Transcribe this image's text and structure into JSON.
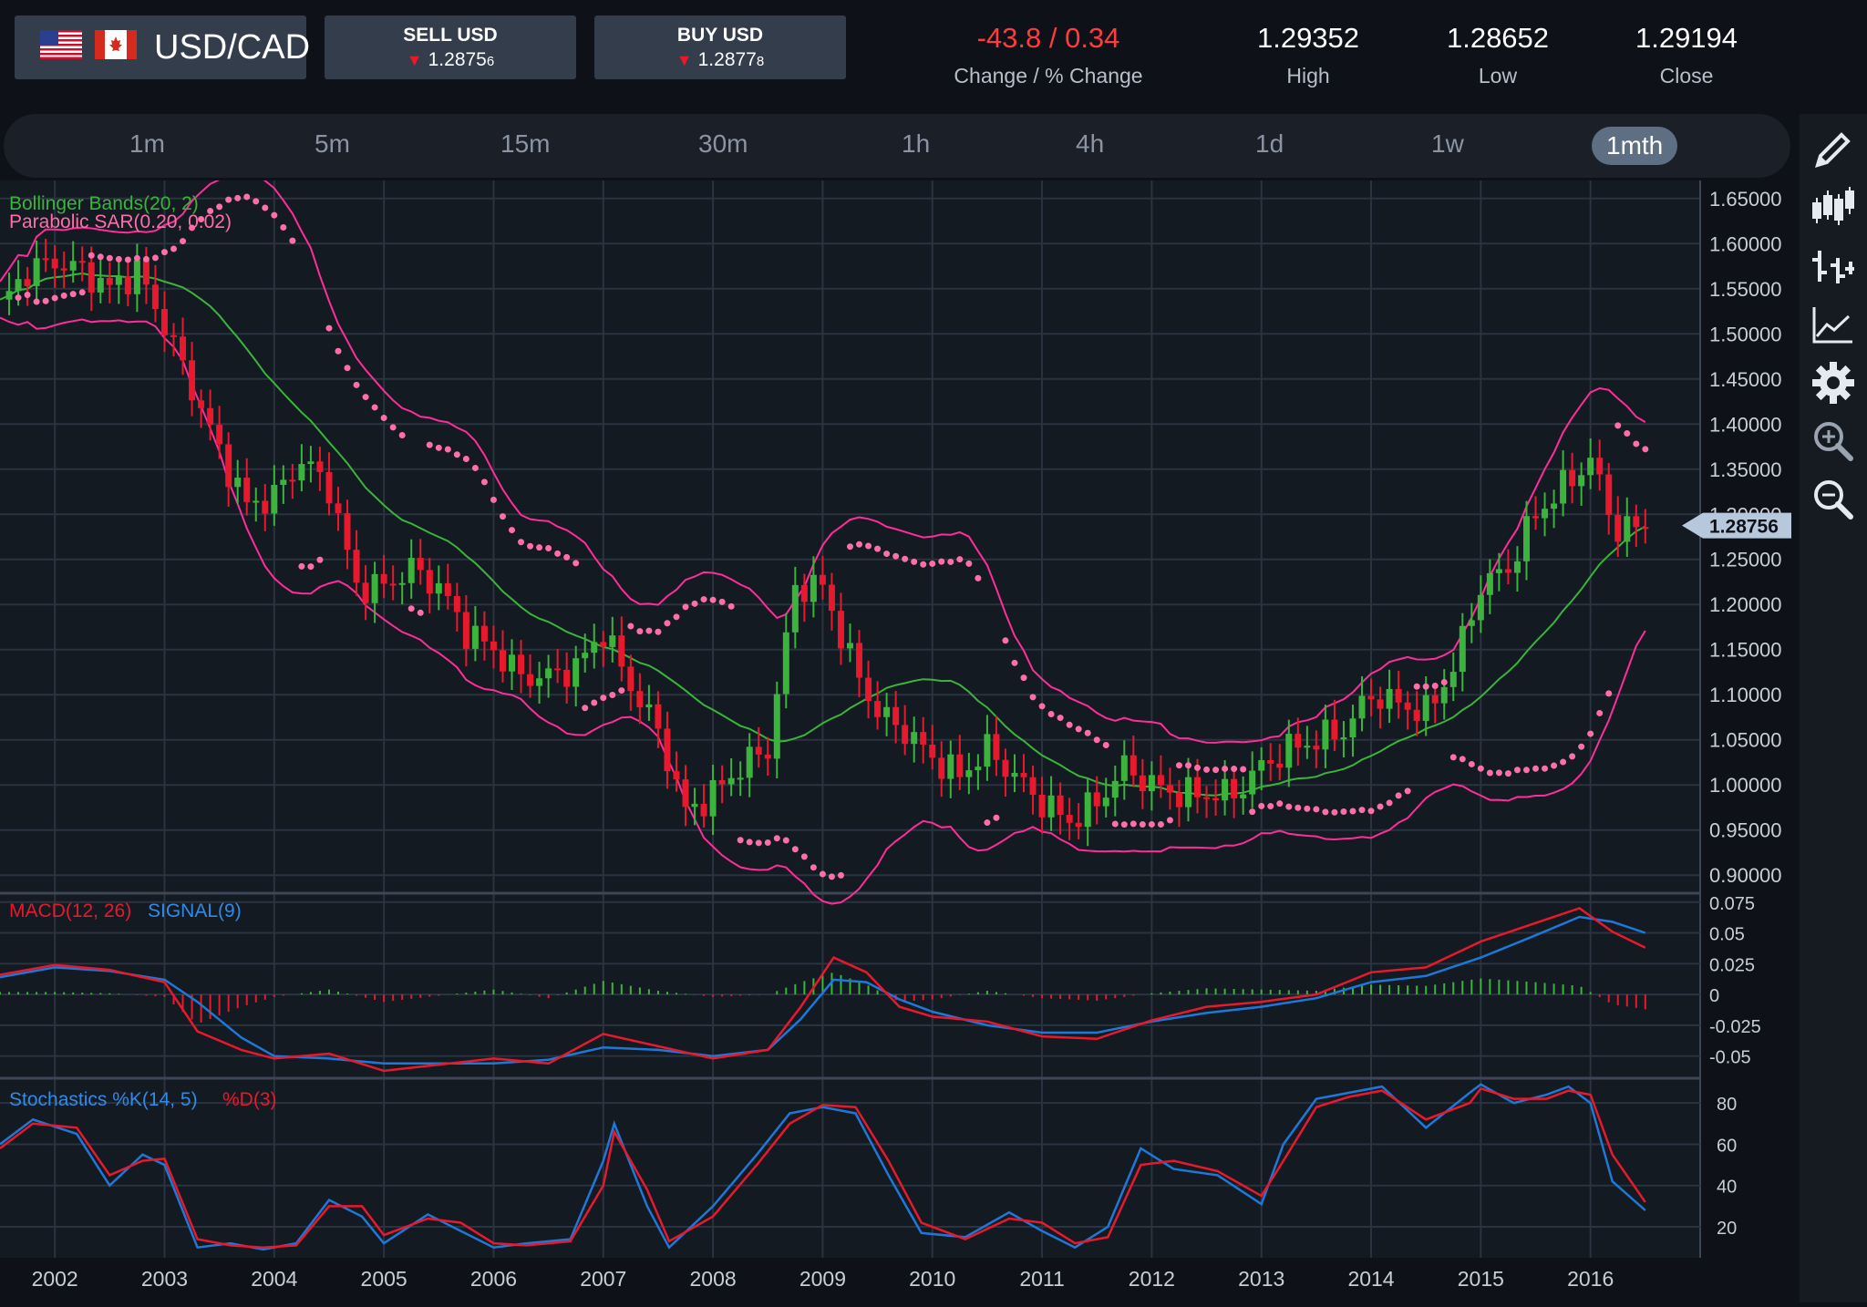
{
  "header": {
    "pair": "USD/CAD",
    "sell": {
      "label": "SELL USD",
      "price": "1.2875",
      "pip": "6"
    },
    "buy": {
      "label": "BUY USD",
      "price": "1.2877",
      "pip": "8"
    },
    "change": {
      "value": "-43.8 / 0.34",
      "label": "Change / % Change"
    },
    "high": {
      "value": "1.29352",
      "label": "High"
    },
    "low": {
      "value": "1.28652",
      "label": "Low"
    },
    "close": {
      "value": "1.29194",
      "label": "Close"
    }
  },
  "timeframes": [
    "1m",
    "5m",
    "15m",
    "30m",
    "1h",
    "4h",
    "1d",
    "1w",
    "1mth"
  ],
  "active_timeframe": "1mth",
  "tools": [
    "pencil-icon",
    "candlestick-icon",
    "ohlc-bars-icon",
    "line-chart-icon",
    "gear-icon",
    "zoom-in-icon",
    "zoom-out-icon"
  ],
  "colors": {
    "up": "#3cb33c",
    "down": "#e8192c",
    "bollinger": "#ff2d9a",
    "sar": "#ff6ea8",
    "macd": "#e8192c",
    "signal": "#1e78d8",
    "background": "#0e1218"
  },
  "chart_data": [
    {
      "type": "candlestick",
      "title": "",
      "indicators": [
        "Bollinger Bands(20, 2)",
        "Parabolic SAR(0.20, 0.02)"
      ],
      "x_tick_labels": [
        "2002",
        "2003",
        "2004",
        "2005",
        "2006",
        "2007",
        "2008",
        "2009",
        "2010",
        "2011",
        "2012",
        "2013",
        "2014",
        "2015",
        "2016"
      ],
      "y_tick_labels": [
        "1.65000",
        "1.60000",
        "1.55000",
        "1.50000",
        "1.45000",
        "1.40000",
        "1.35000",
        "1.30000",
        "1.25000",
        "1.20000",
        "1.15000",
        "1.10000",
        "1.05000",
        "1.00000",
        "0.95000",
        "0.90000"
      ],
      "ylim": [
        0.88,
        1.67
      ],
      "xlim": [
        2001.5,
        2017.0
      ],
      "current_price_label": "1.28756",
      "current_price": 1.28756,
      "close_series": [
        [
          2001.5,
          1.53
        ],
        [
          2001.75,
          1.57
        ],
        [
          2002.0,
          1.58
        ],
        [
          2002.25,
          1.57
        ],
        [
          2002.5,
          1.55
        ],
        [
          2002.75,
          1.57
        ],
        [
          2003.0,
          1.51
        ],
        [
          2003.25,
          1.44
        ],
        [
          2003.5,
          1.37
        ],
        [
          2003.75,
          1.31
        ],
        [
          2004.0,
          1.32
        ],
        [
          2004.25,
          1.36
        ],
        [
          2004.5,
          1.33
        ],
        [
          2004.75,
          1.22
        ],
        [
          2005.0,
          1.22
        ],
        [
          2005.25,
          1.24
        ],
        [
          2005.5,
          1.22
        ],
        [
          2005.75,
          1.17
        ],
        [
          2006.0,
          1.15
        ],
        [
          2006.25,
          1.12
        ],
        [
          2006.5,
          1.12
        ],
        [
          2006.75,
          1.13
        ],
        [
          2007.0,
          1.17
        ],
        [
          2007.25,
          1.11
        ],
        [
          2007.5,
          1.06
        ],
        [
          2007.75,
          0.97
        ],
        [
          2008.0,
          0.99
        ],
        [
          2008.25,
          1.02
        ],
        [
          2008.5,
          1.04
        ],
        [
          2008.75,
          1.22
        ],
        [
          2009.0,
          1.22
        ],
        [
          2009.25,
          1.14
        ],
        [
          2009.5,
          1.08
        ],
        [
          2009.75,
          1.06
        ],
        [
          2010.0,
          1.03
        ],
        [
          2010.25,
          1.01
        ],
        [
          2010.5,
          1.04
        ],
        [
          2010.75,
          1.01
        ],
        [
          2011.0,
          0.98
        ],
        [
          2011.25,
          0.96
        ],
        [
          2011.5,
          0.98
        ],
        [
          2011.75,
          1.02
        ],
        [
          2012.0,
          1.0
        ],
        [
          2012.25,
          0.99
        ],
        [
          2012.5,
          0.99
        ],
        [
          2012.75,
          0.99
        ],
        [
          2013.0,
          1.02
        ],
        [
          2013.25,
          1.04
        ],
        [
          2013.5,
          1.05
        ],
        [
          2013.75,
          1.06
        ],
        [
          2014.0,
          1.1
        ],
        [
          2014.25,
          1.09
        ],
        [
          2014.5,
          1.08
        ],
        [
          2014.75,
          1.13
        ],
        [
          2015.0,
          1.22
        ],
        [
          2015.25,
          1.24
        ],
        [
          2015.5,
          1.3
        ],
        [
          2015.75,
          1.33
        ],
        [
          2016.0,
          1.36
        ],
        [
          2016.25,
          1.28
        ],
        [
          2016.5,
          1.29
        ]
      ]
    },
    {
      "type": "line",
      "title": "",
      "indicators": [
        "MACD(12, 26)",
        "SIGNAL(9)"
      ],
      "y_tick_labels": [
        "0.075",
        "0.05",
        "0.025",
        "0",
        "-0.025",
        "-0.05"
      ],
      "ylim": [
        -0.068,
        0.08
      ],
      "series": [
        {
          "name": "MACD(12, 26)",
          "points": [
            [
              2001.5,
              0.016
            ],
            [
              2002.0,
              0.024
            ],
            [
              2002.5,
              0.02
            ],
            [
              2003.0,
              0.01
            ],
            [
              2003.3,
              -0.03
            ],
            [
              2003.7,
              -0.045
            ],
            [
              2004.0,
              -0.052
            ],
            [
              2004.5,
              -0.048
            ],
            [
              2005.0,
              -0.062
            ],
            [
              2005.5,
              -0.057
            ],
            [
              2006.0,
              -0.052
            ],
            [
              2006.5,
              -0.056
            ],
            [
              2007.0,
              -0.032
            ],
            [
              2007.5,
              -0.042
            ],
            [
              2008.0,
              -0.052
            ],
            [
              2008.5,
              -0.045
            ],
            [
              2008.8,
              -0.01
            ],
            [
              2009.1,
              0.03
            ],
            [
              2009.4,
              0.018
            ],
            [
              2009.7,
              -0.01
            ],
            [
              2010.0,
              -0.018
            ],
            [
              2010.5,
              -0.022
            ],
            [
              2011.0,
              -0.034
            ],
            [
              2011.5,
              -0.036
            ],
            [
              2012.0,
              -0.021
            ],
            [
              2012.5,
              -0.01
            ],
            [
              2013.0,
              -0.006
            ],
            [
              2013.5,
              0.0
            ],
            [
              2014.0,
              0.018
            ],
            [
              2014.5,
              0.022
            ],
            [
              2015.0,
              0.043
            ],
            [
              2015.5,
              0.058
            ],
            [
              2015.9,
              0.07
            ],
            [
              2016.2,
              0.051
            ],
            [
              2016.5,
              0.038
            ]
          ]
        },
        {
          "name": "SIGNAL(9)",
          "points": [
            [
              2001.5,
              0.014
            ],
            [
              2002.0,
              0.022
            ],
            [
              2002.5,
              0.019
            ],
            [
              2003.0,
              0.012
            ],
            [
              2003.3,
              -0.006
            ],
            [
              2003.7,
              -0.035
            ],
            [
              2004.0,
              -0.05
            ],
            [
              2004.5,
              -0.052
            ],
            [
              2005.0,
              -0.056
            ],
            [
              2005.5,
              -0.056
            ],
            [
              2006.0,
              -0.056
            ],
            [
              2006.5,
              -0.053
            ],
            [
              2007.0,
              -0.043
            ],
            [
              2007.5,
              -0.045
            ],
            [
              2008.0,
              -0.05
            ],
            [
              2008.5,
              -0.045
            ],
            [
              2008.8,
              -0.02
            ],
            [
              2009.1,
              0.012
            ],
            [
              2009.4,
              0.01
            ],
            [
              2009.7,
              -0.004
            ],
            [
              2010.0,
              -0.014
            ],
            [
              2010.5,
              -0.025
            ],
            [
              2011.0,
              -0.031
            ],
            [
              2011.5,
              -0.031
            ],
            [
              2012.0,
              -0.022
            ],
            [
              2012.5,
              -0.015
            ],
            [
              2013.0,
              -0.01
            ],
            [
              2013.5,
              -0.003
            ],
            [
              2014.0,
              0.01
            ],
            [
              2014.5,
              0.015
            ],
            [
              2015.0,
              0.03
            ],
            [
              2015.5,
              0.048
            ],
            [
              2015.9,
              0.063
            ],
            [
              2016.2,
              0.059
            ],
            [
              2016.5,
              0.05
            ]
          ]
        }
      ]
    },
    {
      "type": "line",
      "title": "",
      "indicators": [
        "Stochastics %K(14, 5)",
        "%D(3)"
      ],
      "y_tick_labels": [
        "80",
        "60",
        "40",
        "20"
      ],
      "ylim": [
        5,
        92
      ],
      "series": [
        {
          "name": "Stochastics %K(14, 5)",
          "points": [
            [
              2001.5,
              60
            ],
            [
              2001.8,
              72
            ],
            [
              2002.2,
              65
            ],
            [
              2002.5,
              40
            ],
            [
              2002.8,
              55
            ],
            [
              2003.0,
              50
            ],
            [
              2003.3,
              10
            ],
            [
              2003.6,
              12
            ],
            [
              2003.9,
              9
            ],
            [
              2004.2,
              12
            ],
            [
              2004.5,
              33
            ],
            [
              2004.8,
              25
            ],
            [
              2005.0,
              12
            ],
            [
              2005.4,
              26
            ],
            [
              2005.7,
              18
            ],
            [
              2006.0,
              10
            ],
            [
              2006.3,
              12
            ],
            [
              2006.7,
              14
            ],
            [
              2007.0,
              52
            ],
            [
              2007.1,
              70
            ],
            [
              2007.4,
              30
            ],
            [
              2007.6,
              10
            ],
            [
              2008.0,
              30
            ],
            [
              2008.4,
              55
            ],
            [
              2008.7,
              75
            ],
            [
              2009.0,
              78
            ],
            [
              2009.3,
              75
            ],
            [
              2009.6,
              45
            ],
            [
              2009.9,
              17
            ],
            [
              2010.3,
              15
            ],
            [
              2010.7,
              27
            ],
            [
              2011.0,
              18
            ],
            [
              2011.3,
              10
            ],
            [
              2011.6,
              20
            ],
            [
              2011.9,
              58
            ],
            [
              2012.2,
              48
            ],
            [
              2012.6,
              45
            ],
            [
              2013.0,
              31
            ],
            [
              2013.2,
              60
            ],
            [
              2013.5,
              82
            ],
            [
              2013.8,
              85
            ],
            [
              2014.1,
              88
            ],
            [
              2014.5,
              68
            ],
            [
              2014.9,
              85
            ],
            [
              2015.0,
              89
            ],
            [
              2015.3,
              80
            ],
            [
              2015.6,
              84
            ],
            [
              2015.8,
              88
            ],
            [
              2016.0,
              80
            ],
            [
              2016.2,
              42
            ],
            [
              2016.5,
              28
            ]
          ]
        },
        {
          "name": "%D(3)",
          "points": [
            [
              2001.5,
              58
            ],
            [
              2001.8,
              70
            ],
            [
              2002.2,
              68
            ],
            [
              2002.5,
              45
            ],
            [
              2002.8,
              52
            ],
            [
              2003.0,
              53
            ],
            [
              2003.3,
              14
            ],
            [
              2003.6,
              11
            ],
            [
              2003.9,
              10
            ],
            [
              2004.2,
              11
            ],
            [
              2004.5,
              30
            ],
            [
              2004.8,
              30
            ],
            [
              2005.0,
              16
            ],
            [
              2005.4,
              24
            ],
            [
              2005.7,
              22
            ],
            [
              2006.0,
              12
            ],
            [
              2006.3,
              11
            ],
            [
              2006.7,
              13
            ],
            [
              2007.0,
              40
            ],
            [
              2007.1,
              66
            ],
            [
              2007.4,
              38
            ],
            [
              2007.6,
              13
            ],
            [
              2008.0,
              25
            ],
            [
              2008.4,
              50
            ],
            [
              2008.7,
              70
            ],
            [
              2009.0,
              79
            ],
            [
              2009.3,
              78
            ],
            [
              2009.6,
              52
            ],
            [
              2009.9,
              22
            ],
            [
              2010.3,
              14
            ],
            [
              2010.7,
              24
            ],
            [
              2011.0,
              22
            ],
            [
              2011.3,
              12
            ],
            [
              2011.6,
              15
            ],
            [
              2011.9,
              50
            ],
            [
              2012.2,
              52
            ],
            [
              2012.6,
              47
            ],
            [
              2013.0,
              35
            ],
            [
              2013.2,
              52
            ],
            [
              2013.5,
              78
            ],
            [
              2013.8,
              83
            ],
            [
              2014.1,
              86
            ],
            [
              2014.5,
              72
            ],
            [
              2014.9,
              80
            ],
            [
              2015.0,
              87
            ],
            [
              2015.3,
              82
            ],
            [
              2015.6,
              82
            ],
            [
              2015.8,
              86
            ],
            [
              2016.0,
              84
            ],
            [
              2016.2,
              55
            ],
            [
              2016.5,
              32
            ]
          ]
        }
      ]
    }
  ]
}
